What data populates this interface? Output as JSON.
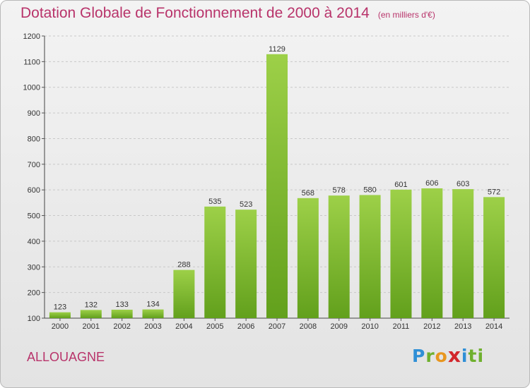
{
  "header": {
    "title": "Dotation Globale de Fonctionnement de 2000 à 2014",
    "unit": "(en milliers d'€)"
  },
  "footer": {
    "commune": "ALLOUAGNE",
    "logo": [
      "P",
      "r",
      "o",
      "x",
      "i",
      "ti"
    ]
  },
  "colors": {
    "title": "#b8336a",
    "bar_light": "#9dd048",
    "bar_dark": "#62a01c",
    "grid": "#c8c8c8"
  },
  "chart_data": {
    "type": "bar",
    "categories": [
      "2000",
      "2001",
      "2002",
      "2003",
      "2004",
      "2005",
      "2006",
      "2007",
      "2008",
      "2009",
      "2010",
      "2011",
      "2012",
      "2013",
      "2014"
    ],
    "values": [
      123,
      132,
      133,
      134,
      288,
      535,
      523,
      1129,
      568,
      578,
      580,
      601,
      606,
      603,
      572
    ],
    "title": "Dotation Globale de Fonctionnement de 2000 à 2014",
    "ylim": [
      100,
      1200
    ],
    "yticks": [
      100,
      200,
      300,
      400,
      500,
      600,
      700,
      800,
      900,
      1000,
      1100,
      1200
    ],
    "grid": true
  }
}
